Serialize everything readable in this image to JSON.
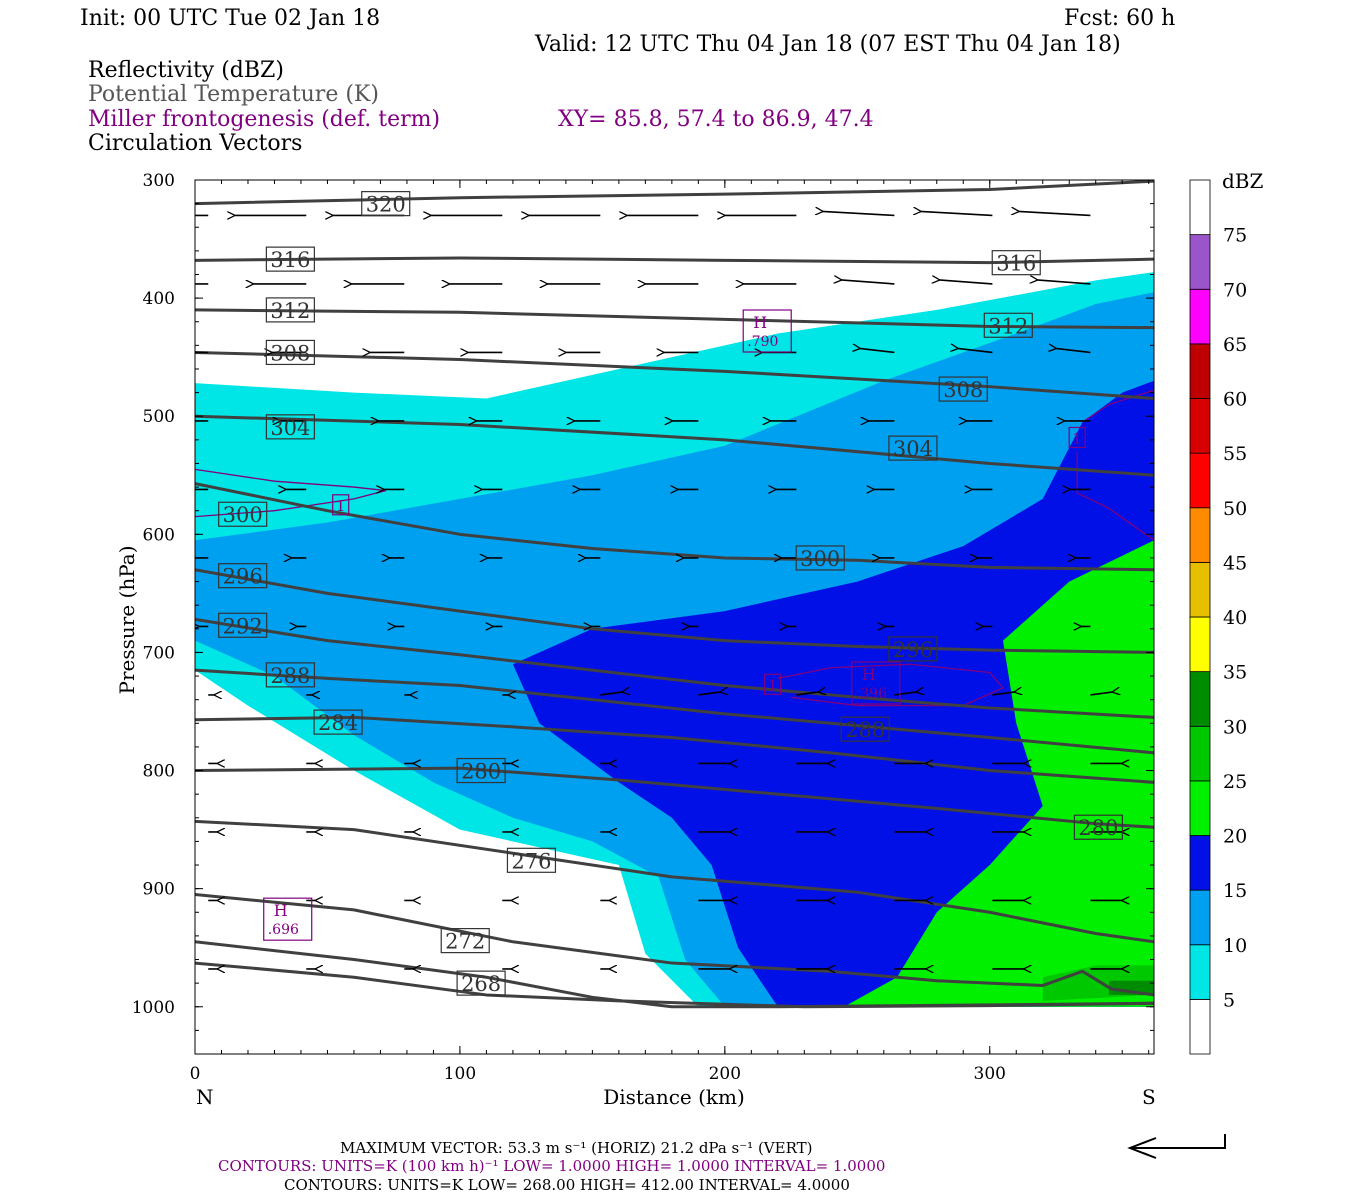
{
  "header": {
    "init": "Init: 00 UTC Tue 02 Jan 18",
    "fcst": "Fcst:   60 h",
    "valid": "Valid: 12 UTC Thu 04 Jan 18 (07 EST Thu 04 Jan 18)",
    "field1": "Reflectivity (dBZ)",
    "field2": "Potential Temperature (K)",
    "field3": "Miller frontogenesis (def. term)",
    "xy": "XY=  85.8, 57.4 to  86.9, 47.4",
    "field4": "Circulation Vectors"
  },
  "colors": {
    "theta": "#404040",
    "fronto": "#800080",
    "dbz": [
      "#ffffff",
      "#00e6e6",
      "#00a0f0",
      "#0010e6",
      "#00f000",
      "#00c800",
      "#008c00",
      "#ffff00",
      "#e6bf00",
      "#ff8c00",
      "#ff0000",
      "#d70000",
      "#be0000",
      "#ff00ff",
      "#9955c9",
      "#ffffff"
    ]
  },
  "chart_data": {
    "type": "cross-section",
    "xlabel": "Distance (km)",
    "ylabel": "Pressure (hPa)",
    "xlim": [
      0,
      362
    ],
    "ylim": [
      1040,
      300
    ],
    "x_ticks": [
      0,
      100,
      200,
      300
    ],
    "y_ticks": [
      300,
      400,
      500,
      600,
      700,
      800,
      900,
      1000
    ],
    "left_end_label": "N",
    "right_end_label": "S",
    "colorbar": {
      "unit": "dBZ",
      "levels": [
        5,
        10,
        15,
        20,
        25,
        30,
        35,
        40,
        45,
        50,
        55,
        60,
        65,
        70,
        75
      ]
    },
    "reflectivity_regions": [
      {
        "dbz": 5,
        "outline": [
          [
            0,
            472
          ],
          [
            60,
            480
          ],
          [
            110,
            485
          ],
          [
            160,
            460
          ],
          [
            220,
            430
          ],
          [
            280,
            410
          ],
          [
            340,
            385
          ],
          [
            362,
            378
          ],
          [
            362,
            1000
          ],
          [
            190,
            1000
          ],
          [
            170,
            955
          ],
          [
            160,
            880
          ],
          [
            140,
            870
          ],
          [
            100,
            850
          ],
          [
            60,
            800
          ],
          [
            20,
            745
          ],
          [
            0,
            715
          ]
        ]
      },
      {
        "dbz": 10,
        "outline": [
          [
            0,
            605
          ],
          [
            50,
            590
          ],
          [
            100,
            570
          ],
          [
            150,
            550
          ],
          [
            200,
            525
          ],
          [
            260,
            470
          ],
          [
            310,
            430
          ],
          [
            340,
            405
          ],
          [
            362,
            395
          ],
          [
            362,
            1000
          ],
          [
            200,
            1000
          ],
          [
            185,
            960
          ],
          [
            175,
            890
          ],
          [
            150,
            860
          ],
          [
            120,
            840
          ],
          [
            90,
            810
          ],
          [
            60,
            770
          ],
          [
            30,
            720
          ],
          [
            0,
            690
          ]
        ]
      },
      {
        "dbz": 15,
        "outline": [
          [
            120,
            710
          ],
          [
            150,
            680
          ],
          [
            200,
            665
          ],
          [
            250,
            640
          ],
          [
            290,
            610
          ],
          [
            320,
            570
          ],
          [
            335,
            505
          ],
          [
            350,
            480
          ],
          [
            362,
            470
          ],
          [
            362,
            1000
          ],
          [
            220,
            1000
          ],
          [
            205,
            950
          ],
          [
            195,
            880
          ],
          [
            180,
            840
          ],
          [
            160,
            810
          ],
          [
            130,
            760
          ]
        ]
      },
      {
        "dbz": 20,
        "outline": [
          [
            362,
            605
          ],
          [
            330,
            640
          ],
          [
            305,
            690
          ],
          [
            310,
            760
          ],
          [
            320,
            830
          ],
          [
            300,
            880
          ],
          [
            280,
            920
          ],
          [
            265,
            975
          ],
          [
            245,
            1000
          ],
          [
            362,
            1000
          ]
        ]
      },
      {
        "dbz": 25,
        "outline": [
          [
            320,
            975
          ],
          [
            340,
            965
          ],
          [
            362,
            965
          ],
          [
            362,
            990
          ],
          [
            320,
            995
          ]
        ]
      },
      {
        "dbz": 30,
        "outline": [
          [
            345,
            978
          ],
          [
            362,
            978
          ],
          [
            362,
            990
          ],
          [
            345,
            990
          ]
        ]
      }
    ],
    "theta_contours": [
      {
        "label": "320",
        "points": [
          [
            0,
            320
          ],
          [
            100,
            315
          ],
          [
            200,
            312
          ],
          [
            300,
            308
          ],
          [
            362,
            301
          ]
        ],
        "label_at": [
          72,
          320
        ]
      },
      {
        "label": "316",
        "points": [
          [
            0,
            368
          ],
          [
            100,
            366
          ],
          [
            200,
            368
          ],
          [
            300,
            370
          ],
          [
            362,
            367
          ]
        ],
        "label_at": [
          36,
          367
        ]
      },
      {
        "label": "316",
        "points": [],
        "label_at": [
          310,
          370
        ]
      },
      {
        "label": "312",
        "points": [
          [
            0,
            410
          ],
          [
            100,
            412
          ],
          [
            200,
            418
          ],
          [
            300,
            424
          ],
          [
            362,
            425
          ]
        ],
        "label_at": [
          36,
          410
        ]
      },
      {
        "label": "312",
        "points": [],
        "label_at": [
          307,
          423
        ]
      },
      {
        "label": "308",
        "points": [
          [
            0,
            446
          ],
          [
            100,
            452
          ],
          [
            200,
            462
          ],
          [
            300,
            475
          ],
          [
            362,
            485
          ]
        ],
        "label_at": [
          36,
          446
        ]
      },
      {
        "label": "308",
        "points": [],
        "label_at": [
          290,
          477
        ]
      },
      {
        "label": "304",
        "points": [
          [
            0,
            500
          ],
          [
            100,
            507
          ],
          [
            200,
            520
          ],
          [
            300,
            540
          ],
          [
            362,
            550
          ]
        ],
        "label_at": [
          36,
          509
        ]
      },
      {
        "label": "304",
        "points": [],
        "label_at": [
          271,
          527
        ]
      },
      {
        "label": "300",
        "points": [
          [
            0,
            557
          ],
          [
            50,
            580
          ],
          [
            100,
            600
          ],
          [
            150,
            612
          ],
          [
            200,
            620
          ],
          [
            250,
            622
          ],
          [
            300,
            628
          ],
          [
            362,
            630
          ]
        ],
        "label_at": [
          18,
          583
        ]
      },
      {
        "label": "300",
        "points": [],
        "label_at": [
          236,
          620
        ]
      },
      {
        "label": "296",
        "points": [
          [
            0,
            630
          ],
          [
            50,
            650
          ],
          [
            100,
            665
          ],
          [
            150,
            680
          ],
          [
            200,
            690
          ],
          [
            250,
            695
          ],
          [
            300,
            698
          ],
          [
            362,
            700
          ]
        ],
        "label_at": [
          18,
          635
        ]
      },
      {
        "label": "296",
        "points": [],
        "label_at": [
          271,
          697
        ]
      },
      {
        "label": "292",
        "points": [
          [
            0,
            672
          ],
          [
            50,
            690
          ],
          [
            100,
            702
          ],
          [
            150,
            715
          ],
          [
            200,
            728
          ],
          [
            250,
            738
          ],
          [
            300,
            747
          ],
          [
            362,
            755
          ]
        ],
        "label_at": [
          18,
          677
        ]
      },
      {
        "label": "288",
        "points": [
          [
            0,
            715
          ],
          [
            50,
            722
          ],
          [
            100,
            728
          ],
          [
            150,
            740
          ],
          [
            200,
            752
          ],
          [
            250,
            762
          ],
          [
            300,
            772
          ],
          [
            362,
            785
          ]
        ],
        "label_at": [
          36,
          719
        ]
      },
      {
        "label": "288",
        "points": [],
        "label_at": [
          253,
          765
        ]
      },
      {
        "label": "284",
        "points": [
          [
            0,
            757
          ],
          [
            60,
            755
          ],
          [
            120,
            763
          ],
          [
            180,
            772
          ],
          [
            240,
            785
          ],
          [
            300,
            800
          ],
          [
            362,
            810
          ]
        ],
        "label_at": [
          54,
          759
        ]
      },
      {
        "label": "280",
        "points": [
          [
            0,
            800
          ],
          [
            100,
            798
          ],
          [
            160,
            808
          ],
          [
            220,
            820
          ],
          [
            280,
            832
          ],
          [
            340,
            845
          ],
          [
            362,
            848
          ]
        ],
        "label_at": [
          108,
          800
        ]
      },
      {
        "label": "280",
        "points": [],
        "label_at": [
          341,
          848
        ]
      },
      {
        "label": "276",
        "points": [
          [
            0,
            843
          ],
          [
            60,
            850
          ],
          [
            120,
            870
          ],
          [
            180,
            890
          ],
          [
            250,
            903
          ],
          [
            300,
            920
          ],
          [
            340,
            938
          ],
          [
            362,
            945
          ]
        ],
        "label_at": [
          127,
          876
        ]
      },
      {
        "label": "272",
        "points": [
          [
            0,
            905
          ],
          [
            60,
            918
          ],
          [
            120,
            945
          ],
          [
            180,
            963
          ],
          [
            240,
            970
          ],
          [
            280,
            978
          ],
          [
            320,
            982
          ],
          [
            335,
            970
          ],
          [
            346,
            985
          ],
          [
            362,
            990
          ]
        ],
        "label_at": [
          102,
          944
        ]
      },
      {
        "label": "268",
        "points": [
          [
            0,
            945
          ],
          [
            60,
            960
          ],
          [
            110,
            975
          ],
          [
            150,
            992
          ],
          [
            180,
            1000
          ],
          [
            220,
            1000
          ],
          [
            270,
            999
          ],
          [
            320,
            998
          ],
          [
            362,
            997
          ]
        ],
        "label_at": [
          108,
          980
        ]
      },
      {
        "label": "",
        "points": [
          [
            0,
            963
          ],
          [
            60,
            975
          ],
          [
            110,
            990
          ],
          [
            160,
            995
          ],
          [
            230,
            1000
          ],
          [
            300,
            999
          ],
          [
            362,
            997
          ]
        ],
        "label_at": null
      }
    ],
    "fronto_labels": [
      {
        "text": "1",
        "at": [
          55,
          575
        ]
      },
      {
        "text": "1",
        "at": [
          333,
          518
        ]
      },
      {
        "text": "1",
        "at": [
          218,
          727
        ]
      }
    ],
    "max_labels": [
      {
        "text": "H",
        "value": ".790",
        "at": [
          216,
          427
        ]
      },
      {
        "text": "H",
        "value": ".696",
        "at": [
          35,
          925
        ]
      },
      {
        "text": "H",
        "value": ".396",
        "at": [
          257,
          725
        ]
      }
    ],
    "footer_vector": "MAXIMUM VECTOR:  53.3 m s⁻¹ (HORIZ)          21.2 dPa s⁻¹ (VERT)",
    "footer_contours_fronto": "CONTOURS:  UNITS=K (100 km h)⁻¹  LOW=   1.0000        HIGH=   1.0000        INTERVAL=    1.0000",
    "footer_contours_theta": "CONTOURS:  UNITS=K  LOW=   268.00       HIGH=   412.00       INTERVAL=    4.0000"
  }
}
